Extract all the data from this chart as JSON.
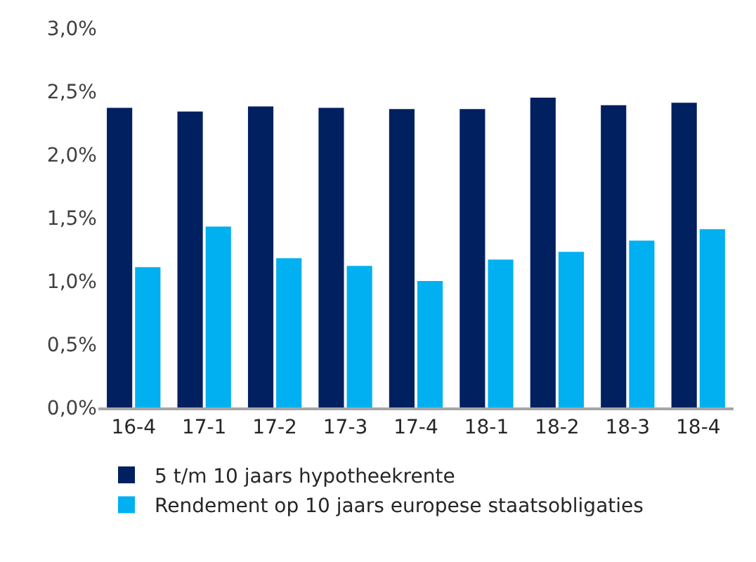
{
  "chart_data": {
    "type": "bar",
    "categories": [
      "16-4",
      "17-1",
      "17-2",
      "17-3",
      "17-4",
      "18-1",
      "18-2",
      "18-3",
      "18-4"
    ],
    "series": [
      {
        "name": "5 t/m 10 jaars hypotheekrente",
        "color": "#002060",
        "values": [
          2.37,
          2.34,
          2.38,
          2.37,
          2.36,
          2.36,
          2.45,
          2.39,
          2.41
        ]
      },
      {
        "name": "Rendement op 10 jaars europese staatsobligaties",
        "color": "#00b0f0",
        "values": [
          1.11,
          1.43,
          1.18,
          1.12,
          1.0,
          1.17,
          1.23,
          1.32,
          1.41
        ]
      }
    ],
    "ylim": [
      0,
      3
    ],
    "yticks": [
      {
        "value": 0,
        "label": "0,0%"
      },
      {
        "value": 0.5,
        "label": "0,5%"
      },
      {
        "value": 1,
        "label": "1,0%"
      },
      {
        "value": 1.5,
        "label": "1,5%"
      },
      {
        "value": 2,
        "label": "2,0%"
      },
      {
        "value": 2.5,
        "label": "2,5%"
      },
      {
        "value": 3,
        "label": "3,0%"
      }
    ],
    "legend": "bottom"
  }
}
